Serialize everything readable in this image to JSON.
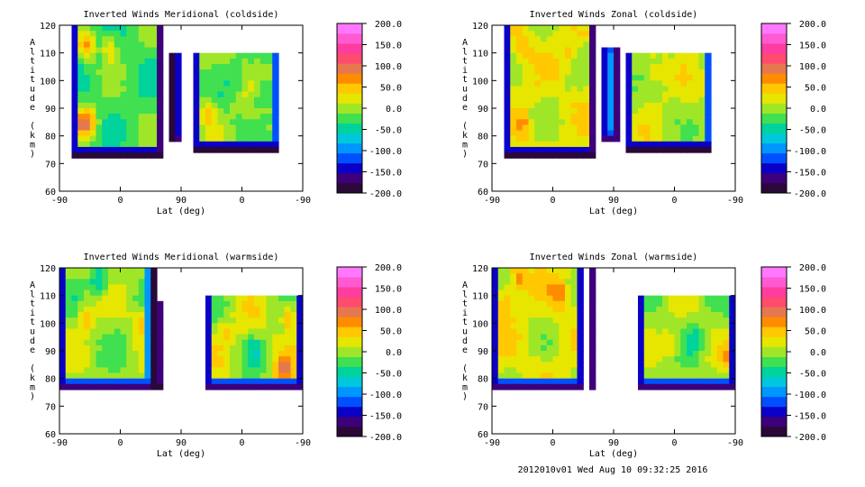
{
  "figure": {
    "footer": "2012010v01 Wed Aug 10 09:32:25 2016"
  },
  "colorbar": {
    "ticks": [
      "200.0",
      "150.0",
      "100.0",
      "50.0",
      "0.0",
      "-50.0",
      "-100.0",
      "-150.0",
      "-200.0"
    ],
    "min": -200,
    "max": 200,
    "step": 25,
    "colors_low_to_high": [
      "#2a0838",
      "#3d007a",
      "#0a00c8",
      "#0050ff",
      "#0096ff",
      "#00c8dc",
      "#00d29b",
      "#40e050",
      "#a0e628",
      "#e6e600",
      "#ffc800",
      "#ff8c00",
      "#e67850",
      "#ff4b6e",
      "#ff3ca0",
      "#ff5ad2",
      "#ff78ff"
    ]
  },
  "chart_data": [
    {
      "type": "heatmap",
      "title": "Inverted Winds Meridional (coldside)",
      "xlabel": "Lat (deg)",
      "ylabel": "Altitude (km)",
      "x_ticks": [
        "-90",
        "0",
        "90",
        "0",
        "-90"
      ],
      "y_ticks": [
        "120",
        "110",
        "100",
        "90",
        "80",
        "70",
        "60"
      ],
      "ylim": [
        60,
        120
      ],
      "z_range": [
        -200,
        200
      ],
      "grid": false,
      "coverage": {
        "min_altitude_km": 75,
        "max_altitude_km": 120
      },
      "x_domain": [
        0,
        360
      ],
      "swaths": [
        {
          "x0": 18,
          "x1": 152,
          "y0": 73,
          "y1": 120,
          "base": -25,
          "var": 30,
          "seed": 1
        },
        {
          "x0": 166,
          "x1": 182,
          "y0": 78,
          "y1": 110,
          "base": -80,
          "var": 30,
          "seed": 2
        },
        {
          "x0": 196,
          "x1": 328,
          "y0": 75,
          "y1": 110,
          "base": -10,
          "var": 30,
          "seed": 3
        }
      ],
      "labels": [
        {
          "x": 30,
          "y": 85,
          "value": 60
        },
        {
          "x": 45,
          "y": 85,
          "value": 55
        },
        {
          "x": 40,
          "y": 112,
          "value": 60
        },
        {
          "x": 75,
          "y": 112,
          "value": 45
        },
        {
          "x": 100,
          "y": 95,
          "value": -35
        },
        {
          "x": 220,
          "y": 88,
          "value": 60
        },
        {
          "x": 300,
          "y": 95,
          "value": -50
        },
        {
          "x": 260,
          "y": 100,
          "value": -40
        }
      ]
    },
    {
      "type": "heatmap",
      "title": "Inverted Winds Zonal (coldside)",
      "xlabel": "Lat (deg)",
      "ylabel": "Altitude (km)",
      "x_ticks": [
        "-90",
        "0",
        "90",
        "0",
        "-90"
      ],
      "y_ticks": [
        "120",
        "110",
        "100",
        "90",
        "80",
        "70",
        "60"
      ],
      "ylim": [
        60,
        120
      ],
      "z_range": [
        -200,
        200
      ],
      "grid": false,
      "coverage": {
        "min_altitude_km": 75,
        "max_altitude_km": 120
      },
      "x_domain": [
        0,
        360
      ],
      "swaths": [
        {
          "x0": 18,
          "x1": 152,
          "y0": 73,
          "y1": 120,
          "base": 20,
          "var": 30,
          "seed": 4
        },
        {
          "x0": 162,
          "x1": 186,
          "y0": 78,
          "y1": 112,
          "base": -100,
          "var": 30,
          "seed": 5
        },
        {
          "x0": 196,
          "x1": 328,
          "y0": 75,
          "y1": 110,
          "base": 10,
          "var": 30,
          "seed": 6
        }
      ],
      "labels": [
        {
          "x": 45,
          "y": 112,
          "value": 60
        },
        {
          "x": 45,
          "y": 84,
          "value": 65
        },
        {
          "x": 115,
          "y": 110,
          "value": 45
        },
        {
          "x": 240,
          "y": 102,
          "value": 50
        },
        {
          "x": 200,
          "y": 95,
          "value": -20
        }
      ]
    },
    {
      "type": "heatmap",
      "title": "Inverted Winds Meridional (warmside)",
      "xlabel": "Lat (deg)",
      "ylabel": "Altitude (km)",
      "x_ticks": [
        "-90",
        "0",
        "90",
        "0",
        "-90"
      ],
      "y_ticks": [
        "120",
        "110",
        "100",
        "90",
        "80",
        "70",
        "60"
      ],
      "ylim": [
        60,
        120
      ],
      "z_range": [
        -200,
        200
      ],
      "grid": false,
      "coverage": {
        "min_altitude_km": 76,
        "max_altitude_km": 120
      },
      "x_domain": [
        0,
        360
      ],
      "swaths": [
        {
          "x0": 0,
          "x1": 140,
          "y0": 76,
          "y1": 120,
          "base": 0,
          "var": 35,
          "seed": 7
        },
        {
          "x0": 144,
          "x1": 152,
          "y0": 77,
          "y1": 108,
          "base": -120,
          "var": 20,
          "seed": 8
        },
        {
          "x0": 215,
          "x1": 360,
          "y0": 76,
          "y1": 110,
          "base": 5,
          "var": 40,
          "seed": 9
        }
      ],
      "labels": [
        {
          "x": 40,
          "y": 102,
          "value": 55
        },
        {
          "x": 120,
          "y": 100,
          "value": 55
        },
        {
          "x": 60,
          "y": 115,
          "value": -70
        },
        {
          "x": 245,
          "y": 97,
          "value": 50
        },
        {
          "x": 340,
          "y": 102,
          "value": 90
        },
        {
          "x": 330,
          "y": 83,
          "value": 80
        },
        {
          "x": 290,
          "y": 90,
          "value": -35
        }
      ]
    },
    {
      "type": "heatmap",
      "title": "Inverted Winds Zonal (warmside)",
      "xlabel": "Lat (deg)",
      "ylabel": "Altitude (km)",
      "x_ticks": [
        "-90",
        "0",
        "90",
        "0",
        "-90"
      ],
      "y_ticks": [
        "120",
        "110",
        "100",
        "90",
        "80",
        "70",
        "60"
      ],
      "ylim": [
        60,
        120
      ],
      "z_range": [
        -200,
        200
      ],
      "grid": false,
      "coverage": {
        "min_altitude_km": 76,
        "max_altitude_km": 120
      },
      "x_domain": [
        0,
        360
      ],
      "swaths": [
        {
          "x0": 0,
          "x1": 135,
          "y0": 76,
          "y1": 120,
          "base": 20,
          "var": 35,
          "seed": 10
        },
        {
          "x0": 140,
          "x1": 150,
          "y0": 76,
          "y1": 120,
          "base": -140,
          "var": 20,
          "seed": 11
        },
        {
          "x0": 215,
          "x1": 360,
          "y0": 76,
          "y1": 110,
          "base": 0,
          "var": 35,
          "seed": 12
        }
      ],
      "labels": [
        {
          "x": 40,
          "y": 116,
          "value": 90
        },
        {
          "x": 100,
          "y": 110,
          "value": 80
        },
        {
          "x": 20,
          "y": 108,
          "value": 75
        },
        {
          "x": 265,
          "y": 92,
          "value": 55
        },
        {
          "x": 350,
          "y": 87,
          "value": 45
        },
        {
          "x": 300,
          "y": 95,
          "value": -40
        }
      ]
    }
  ]
}
